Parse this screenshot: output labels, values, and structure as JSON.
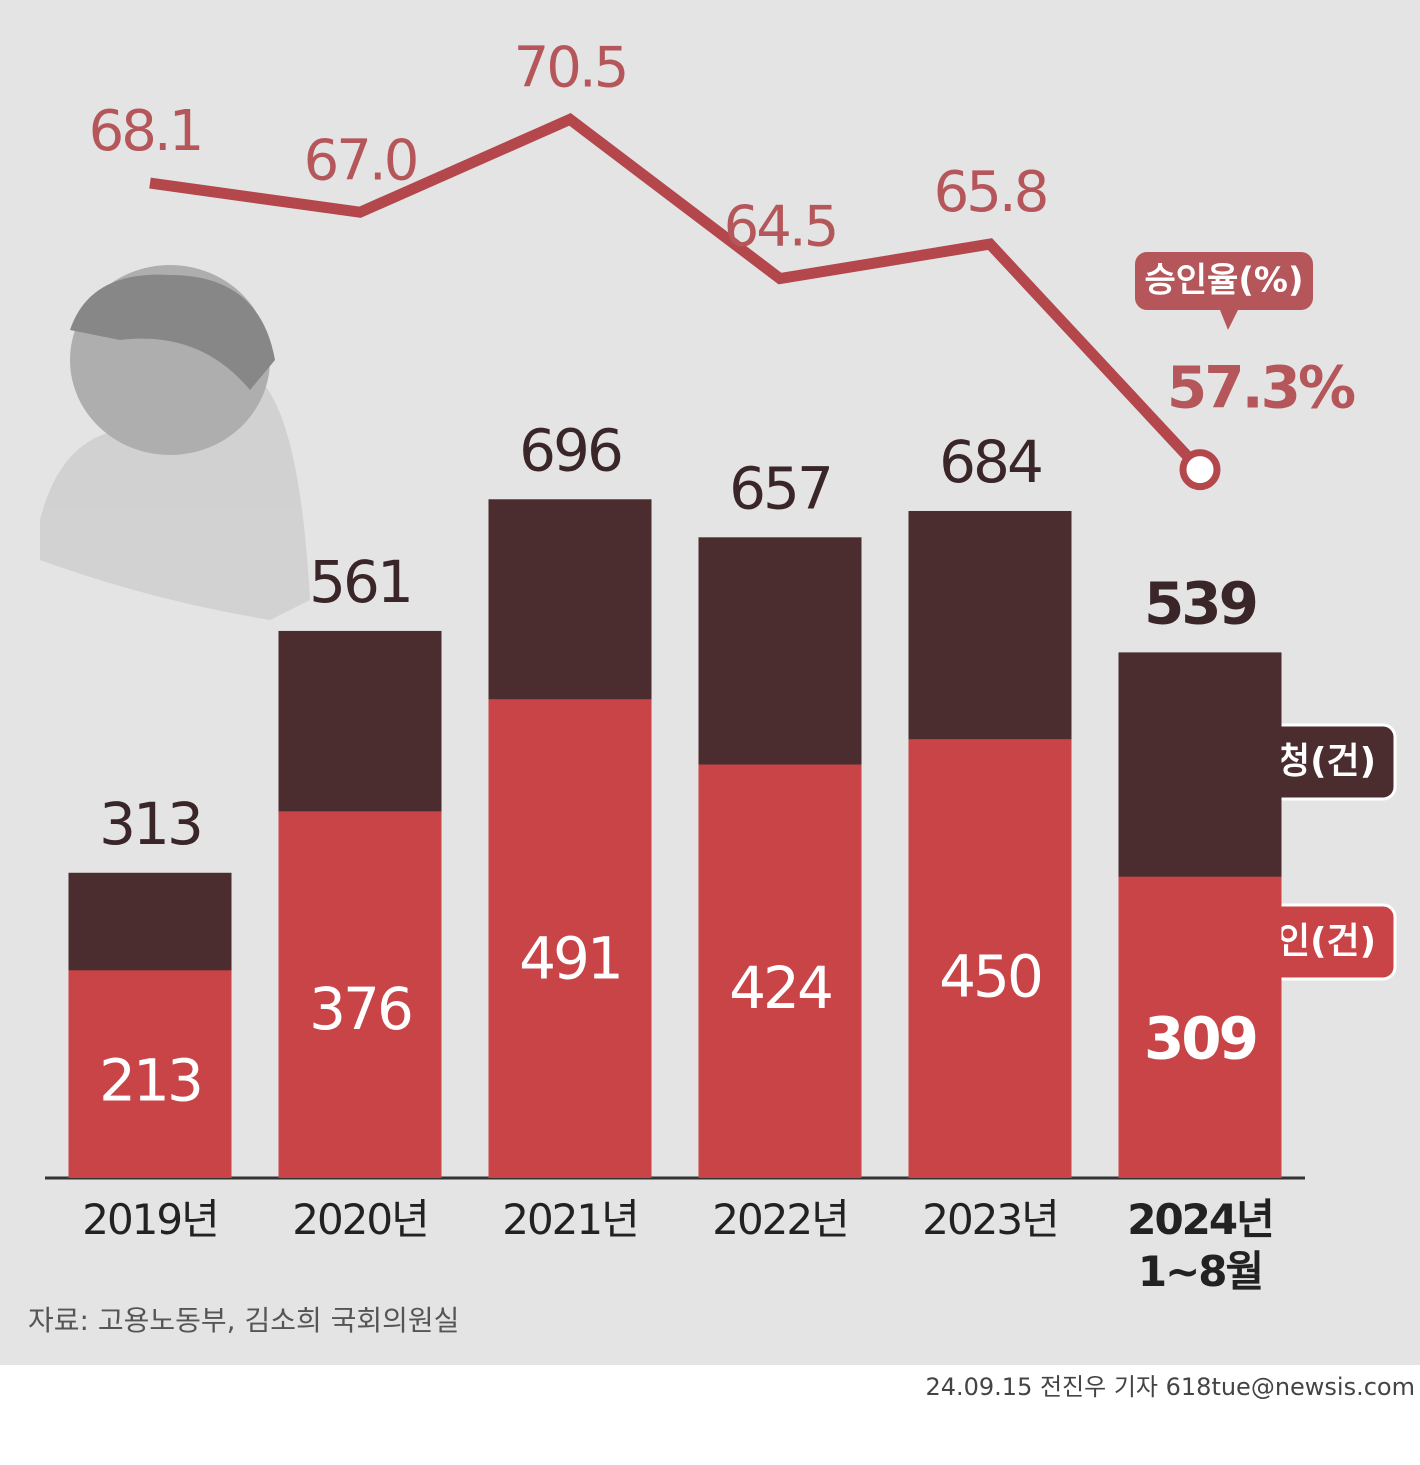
{
  "chart_data": {
    "type": "bar",
    "categories": [
      "2019년",
      "2020년",
      "2021년",
      "2022년",
      "2023년",
      "2024년\n1~8월"
    ],
    "series": [
      {
        "name": "신청(건)",
        "color": "#4b2c2f",
        "values": [
          313,
          561,
          696,
          657,
          684,
          539
        ]
      },
      {
        "name": "승인(건)",
        "color": "#c84447",
        "values": [
          213,
          376,
          491,
          424,
          450,
          309
        ]
      },
      {
        "name": "승인율(%)",
        "type": "line",
        "axis": "y2",
        "color": "#b4474c",
        "values": [
          68.1,
          67.0,
          70.5,
          64.5,
          65.8,
          57.3
        ],
        "value_labels": [
          "68.1",
          "67.0",
          "70.5",
          "64.5",
          "65.8",
          "57.3%"
        ]
      }
    ],
    "ylim": [
      0,
      1208
    ],
    "y2lim": [
      30.6,
      75
    ],
    "source": "자료: 고용노동부, 김소희 국회의원실",
    "credit": "24.09.15 전진우 기자 618tue@newsis.com"
  }
}
